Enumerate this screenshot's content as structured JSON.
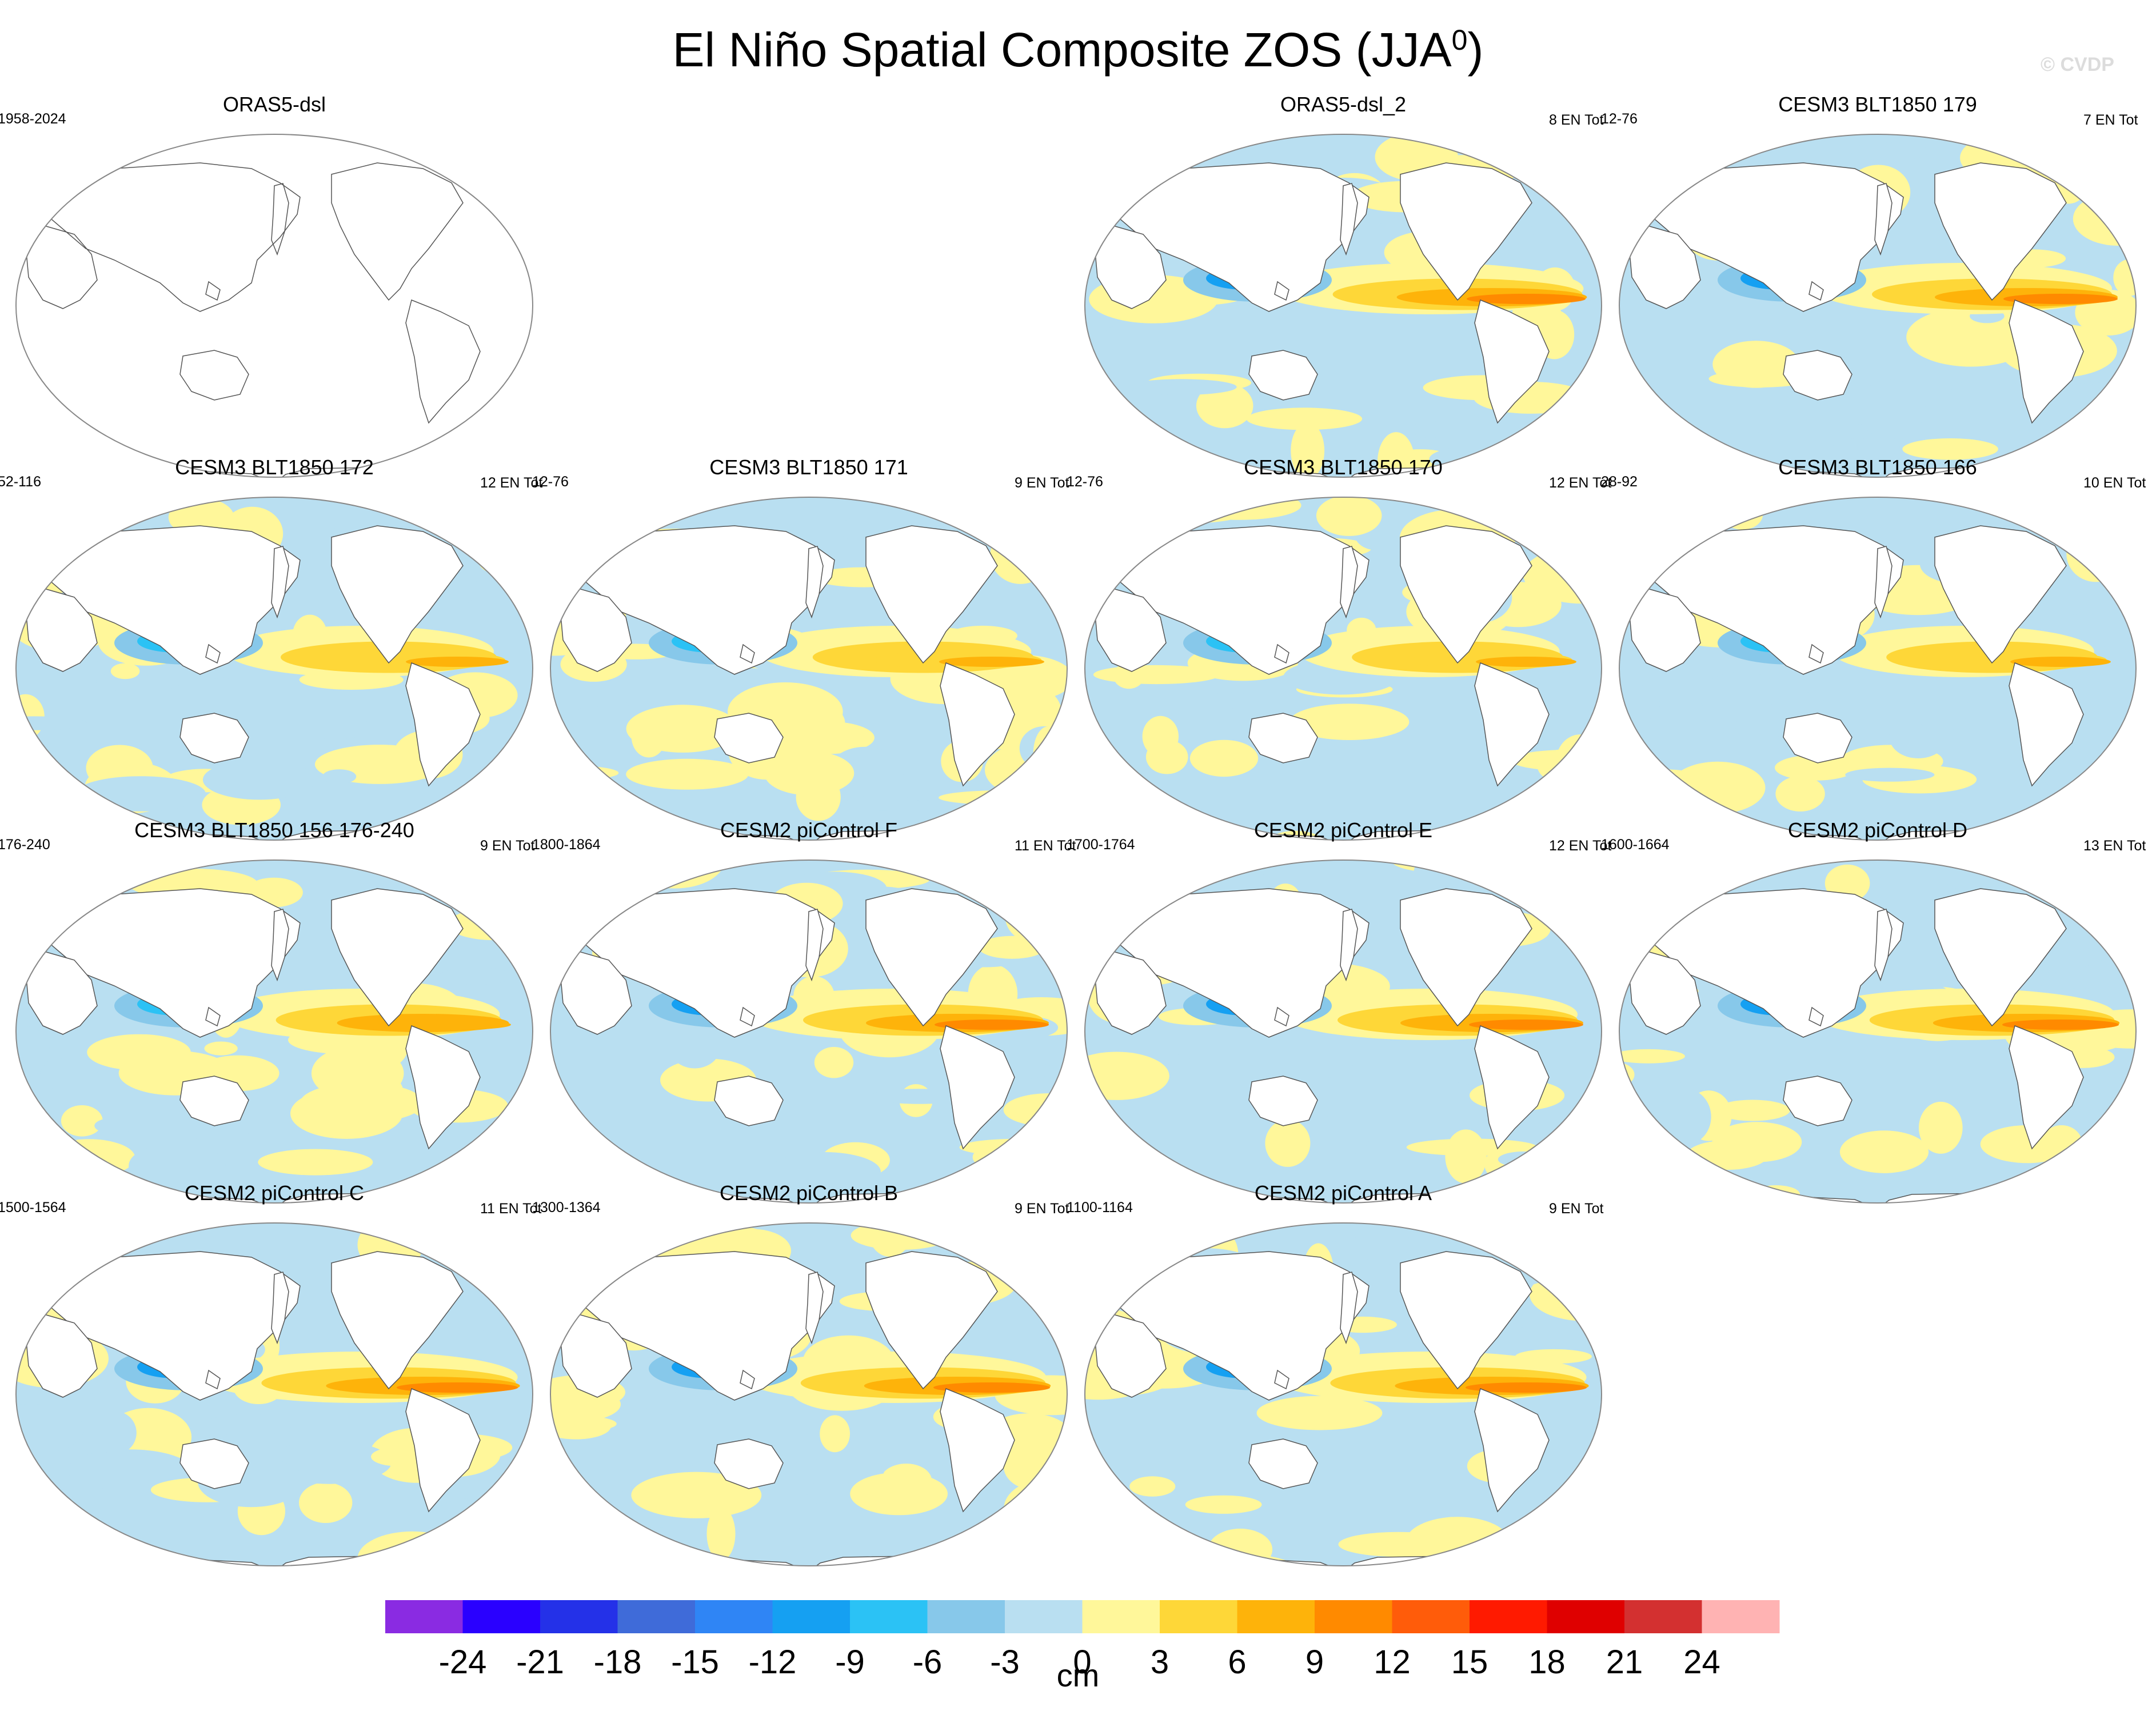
{
  "title": "El Niño Spatial Composite ZOS (JJA",
  "title_sup": "0",
  "title_close": ")",
  "watermark": "© CVDP",
  "chart_data": {
    "type": "heatmap",
    "variable": "ZOS",
    "season": "JJA",
    "units": "cm",
    "colorbar": {
      "ticks": [
        -24,
        -21,
        -18,
        -15,
        -12,
        -9,
        -6,
        -3,
        0,
        3,
        6,
        9,
        12,
        15,
        18,
        21,
        24
      ],
      "tick_labels": [
        "-24",
        "-21",
        "-18",
        "-15",
        "-12",
        "-9",
        "-6",
        "-3",
        "0",
        "3",
        "6",
        "9",
        "12",
        "15",
        "18",
        "21",
        "24"
      ],
      "colors": [
        "#8a2be2",
        "#2a00ff",
        "#2431e8",
        "#3f6bd9",
        "#2f85f5",
        "#15a0f2",
        "#2bc2f5",
        "#87c8ea",
        "#b9dff1",
        "#fff79a",
        "#fed738",
        "#feb30a",
        "#ff8a00",
        "#ff5c0a",
        "#ff1a00",
        "#df0000",
        "#d33030",
        "#ffb3b3"
      ]
    },
    "panels": [
      {
        "title": "ORAS5-dsl",
        "left": "1958-2024",
        "right": "",
        "empty": true
      },
      {
        "title": "ORAS5-dsl_2",
        "left": "",
        "right": "8 EN Tot",
        "strength": 0.85
      },
      {
        "title": "CESM3 BLT1850 179",
        "left": "12-76",
        "right": "7 EN Tot",
        "strength": 0.75
      },
      {
        "title": "CESM3 BLT1850 172",
        "left": "52-116",
        "right": "12 EN Tot",
        "strength": 0.5
      },
      {
        "title": "CESM3 BLT1850 171",
        "left": "12-76",
        "right": "9 EN Tot",
        "strength": 0.55
      },
      {
        "title": "CESM3 BLT1850 170",
        "left": "12-76",
        "right": "12 EN Tot",
        "strength": 0.45
      },
      {
        "title": "CESM3 BLT1850 166",
        "left": "28-92",
        "right": "10 EN Tot",
        "strength": 0.45
      },
      {
        "title": "CESM3 BLT1850 156 176-240",
        "left": "176-240",
        "right": "9 EN Tot",
        "strength": 0.6
      },
      {
        "title": "CESM2 piControl F",
        "left": "1800-1864",
        "right": "11 EN Tot",
        "strength": 0.75
      },
      {
        "title": "CESM2 piControl E",
        "left": "1700-1764",
        "right": "12 EN Tot",
        "strength": 0.75
      },
      {
        "title": "CESM2 piControl D",
        "left": "1600-1664",
        "right": "13 EN Tot",
        "strength": 0.8
      },
      {
        "title": "CESM2 piControl C",
        "left": "1500-1564",
        "right": "11 EN Tot",
        "strength": 0.9
      },
      {
        "title": "CESM2 piControl B",
        "left": "1300-1364",
        "right": "9 EN Tot",
        "strength": 0.8
      },
      {
        "title": "CESM2 piControl A",
        "left": "1100-1164",
        "right": "9 EN Tot",
        "strength": 0.9
      }
    ]
  }
}
